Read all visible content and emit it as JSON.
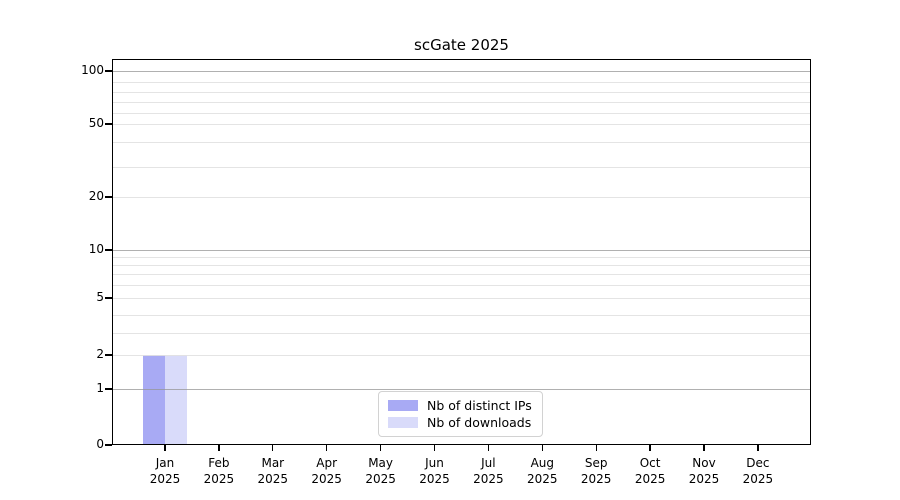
{
  "chart_data": {
    "type": "bar",
    "title": "scGate 2025",
    "categories": [
      "Jan",
      "Feb",
      "Mar",
      "Apr",
      "May",
      "Jun",
      "Jul",
      "Aug",
      "Sep",
      "Oct",
      "Nov",
      "Dec"
    ],
    "category_year_label": "2025",
    "series": [
      {
        "name": "Nb of distinct IPs",
        "color": "#a8aaf4",
        "values": [
          2,
          0,
          0,
          0,
          0,
          0,
          0,
          0,
          0,
          0,
          0,
          0
        ]
      },
      {
        "name": "Nb of downloads",
        "color": "#d9dbfa",
        "values": [
          2,
          0,
          0,
          0,
          0,
          0,
          0,
          0,
          0,
          0,
          0,
          0
        ]
      }
    ],
    "y_axis": {
      "scale": "symlog",
      "ylim": [
        0,
        100
      ],
      "ticks": [
        0,
        1,
        2,
        5,
        10,
        20,
        50,
        100
      ],
      "minor_gridlines": [
        3,
        4,
        6,
        7,
        8,
        9,
        30,
        40,
        60,
        70,
        80,
        90
      ],
      "decade_gridlines": [
        1,
        10,
        100
      ]
    },
    "x_axis": {
      "label": ""
    },
    "legend": {
      "position": "lower center"
    },
    "grid": true
  }
}
